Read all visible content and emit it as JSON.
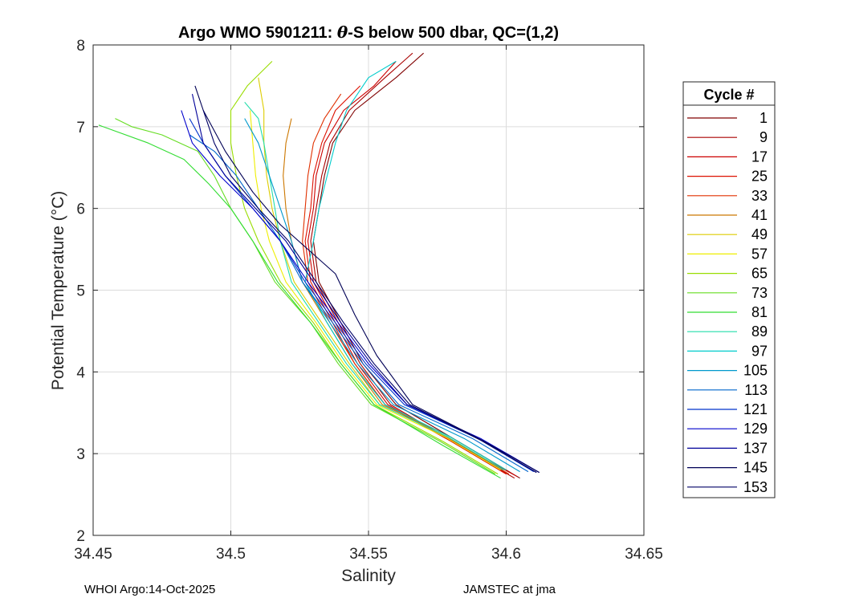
{
  "footer": {
    "left": "WHOI Argo:14-Oct-2025",
    "right": "JAMSTEC at jma"
  },
  "chart_data": {
    "type": "line",
    "title_prefix": "Argo WMO 5901211: ",
    "title_theta": "θ",
    "title_suffix": "-S below 500 dbar,  QC=(1,2)",
    "xlabel": "Salinity",
    "ylabel": "Potential Temperature (°C)",
    "xlim": [
      34.45,
      34.65
    ],
    "ylim": [
      2,
      8
    ],
    "xticks": [
      34.45,
      34.5,
      34.55,
      34.6,
      34.65
    ],
    "xtick_labels": [
      "34.45",
      "34.5",
      "34.55",
      "34.6",
      "34.65"
    ],
    "yticks": [
      2,
      3,
      4,
      5,
      6,
      7,
      8
    ],
    "ytick_labels": [
      "2",
      "3",
      "4",
      "5",
      "6",
      "7",
      "8"
    ],
    "grid": true,
    "legend": {
      "title": "Cycle #",
      "placement": "outside-right"
    },
    "series": [
      {
        "name": "1",
        "color": "#800000",
        "points": [
          [
            34.605,
            2.7
          ],
          [
            34.585,
            3.1
          ],
          [
            34.56,
            3.6
          ],
          [
            34.548,
            4.1
          ],
          [
            34.54,
            4.6
          ],
          [
            34.532,
            5.1
          ],
          [
            34.53,
            5.6
          ],
          [
            34.532,
            6.0
          ],
          [
            34.534,
            6.4
          ],
          [
            34.537,
            6.8
          ],
          [
            34.545,
            7.2
          ],
          [
            34.56,
            7.6
          ],
          [
            34.57,
            7.9
          ]
        ]
      },
      {
        "name": "9",
        "color": "#aa0000",
        "points": [
          [
            34.603,
            2.7
          ],
          [
            34.583,
            3.1
          ],
          [
            34.558,
            3.6
          ],
          [
            34.547,
            4.1
          ],
          [
            34.539,
            4.6
          ],
          [
            34.531,
            5.1
          ],
          [
            34.529,
            5.6
          ],
          [
            34.531,
            6.0
          ],
          [
            34.533,
            6.4
          ],
          [
            34.536,
            6.8
          ],
          [
            34.543,
            7.2
          ],
          [
            34.556,
            7.6
          ],
          [
            34.566,
            7.9
          ]
        ]
      },
      {
        "name": "17",
        "color": "#cc0000",
        "points": [
          [
            34.604,
            2.72
          ],
          [
            34.582,
            3.12
          ],
          [
            34.557,
            3.6
          ],
          [
            34.546,
            4.1
          ],
          [
            34.538,
            4.6
          ],
          [
            34.53,
            5.1
          ],
          [
            34.528,
            5.6
          ],
          [
            34.53,
            6.0
          ],
          [
            34.531,
            6.4
          ],
          [
            34.534,
            6.8
          ],
          [
            34.541,
            7.2
          ],
          [
            34.552,
            7.5
          ],
          [
            34.56,
            7.8
          ]
        ]
      },
      {
        "name": "25",
        "color": "#dd1100",
        "points": [
          [
            34.6,
            2.75
          ],
          [
            34.58,
            3.15
          ],
          [
            34.556,
            3.6
          ],
          [
            34.545,
            4.1
          ],
          [
            34.537,
            4.6
          ],
          [
            34.529,
            5.1
          ],
          [
            34.527,
            5.6
          ],
          [
            34.529,
            6.0
          ],
          [
            34.53,
            6.4
          ],
          [
            34.533,
            6.8
          ],
          [
            34.538,
            7.2
          ],
          [
            34.547,
            7.5
          ]
        ]
      },
      {
        "name": "33",
        "color": "#e03000",
        "points": [
          [
            34.601,
            2.75
          ],
          [
            34.581,
            3.15
          ],
          [
            34.556,
            3.6
          ],
          [
            34.545,
            4.1
          ],
          [
            34.536,
            4.6
          ],
          [
            34.528,
            5.1
          ],
          [
            34.526,
            5.6
          ],
          [
            34.527,
            6.0
          ],
          [
            34.528,
            6.4
          ],
          [
            34.53,
            6.8
          ],
          [
            34.534,
            7.1
          ],
          [
            34.54,
            7.4
          ]
        ]
      },
      {
        "name": "41",
        "color": "#cc7700",
        "points": [
          [
            34.6,
            2.8
          ],
          [
            34.58,
            3.2
          ],
          [
            34.555,
            3.6
          ],
          [
            34.544,
            4.1
          ],
          [
            34.535,
            4.6
          ],
          [
            34.526,
            5.1
          ],
          [
            34.522,
            5.6
          ],
          [
            34.52,
            6.0
          ],
          [
            34.519,
            6.4
          ],
          [
            34.52,
            6.8
          ],
          [
            34.522,
            7.1
          ]
        ]
      },
      {
        "name": "49",
        "color": "#ddcc00",
        "points": [
          [
            34.599,
            2.8
          ],
          [
            34.579,
            3.2
          ],
          [
            34.554,
            3.6
          ],
          [
            34.543,
            4.1
          ],
          [
            34.533,
            4.6
          ],
          [
            34.523,
            5.1
          ],
          [
            34.518,
            5.6
          ],
          [
            34.515,
            6.0
          ],
          [
            34.513,
            6.4
          ],
          [
            34.512,
            6.8
          ],
          [
            34.512,
            7.2
          ],
          [
            34.51,
            7.6
          ]
        ]
      },
      {
        "name": "57",
        "color": "#eeee00",
        "points": [
          [
            34.598,
            2.8
          ],
          [
            34.578,
            3.2
          ],
          [
            34.553,
            3.6
          ],
          [
            34.541,
            4.1
          ],
          [
            34.531,
            4.6
          ],
          [
            34.52,
            5.1
          ],
          [
            34.514,
            5.6
          ],
          [
            34.511,
            6.0
          ],
          [
            34.509,
            6.4
          ],
          [
            34.508,
            6.8
          ],
          [
            34.507,
            7.2
          ]
        ]
      },
      {
        "name": "65",
        "color": "#99dd00",
        "points": [
          [
            34.597,
            2.75
          ],
          [
            34.577,
            3.15
          ],
          [
            34.552,
            3.6
          ],
          [
            34.54,
            4.1
          ],
          [
            34.53,
            4.6
          ],
          [
            34.518,
            5.1
          ],
          [
            34.51,
            5.6
          ],
          [
            34.505,
            6.0
          ],
          [
            34.502,
            6.4
          ],
          [
            34.5,
            6.8
          ],
          [
            34.5,
            7.2
          ],
          [
            34.506,
            7.5
          ],
          [
            34.515,
            7.8
          ]
        ]
      },
      {
        "name": "73",
        "color": "#66dd22",
        "points": [
          [
            34.596,
            2.75
          ],
          [
            34.576,
            3.15
          ],
          [
            34.551,
            3.6
          ],
          [
            34.539,
            4.1
          ],
          [
            34.529,
            4.6
          ],
          [
            34.516,
            5.1
          ],
          [
            34.508,
            5.6
          ],
          [
            34.5,
            6.0
          ],
          [
            34.494,
            6.4
          ],
          [
            34.488,
            6.7
          ],
          [
            34.475,
            6.9
          ],
          [
            34.464,
            7.0
          ],
          [
            34.458,
            7.1
          ]
        ]
      },
      {
        "name": "81",
        "color": "#33dd33",
        "points": [
          [
            34.598,
            2.7
          ],
          [
            34.577,
            3.1
          ],
          [
            34.552,
            3.6
          ],
          [
            34.54,
            4.1
          ],
          [
            34.529,
            4.6
          ],
          [
            34.517,
            5.1
          ],
          [
            34.508,
            5.6
          ],
          [
            34.5,
            6.0
          ],
          [
            34.492,
            6.3
          ],
          [
            34.483,
            6.6
          ],
          [
            34.47,
            6.8
          ],
          [
            34.452,
            7.02
          ]
        ]
      },
      {
        "name": "89",
        "color": "#22ddaa",
        "points": [
          [
            34.599,
            2.8
          ],
          [
            34.579,
            3.2
          ],
          [
            34.554,
            3.6
          ],
          [
            34.542,
            4.1
          ],
          [
            34.532,
            4.6
          ],
          [
            34.522,
            5.1
          ],
          [
            34.518,
            5.6
          ],
          [
            34.516,
            6.0
          ],
          [
            34.514,
            6.4
          ],
          [
            34.512,
            6.8
          ],
          [
            34.51,
            7.1
          ],
          [
            34.505,
            7.3
          ]
        ]
      },
      {
        "name": "97",
        "color": "#00cccc",
        "points": [
          [
            34.6,
            2.8
          ],
          [
            34.58,
            3.2
          ],
          [
            34.556,
            3.6
          ],
          [
            34.544,
            4.1
          ],
          [
            34.535,
            4.6
          ],
          [
            34.527,
            5.1
          ],
          [
            34.53,
            5.6
          ],
          [
            34.532,
            6.0
          ],
          [
            34.535,
            6.4
          ],
          [
            34.538,
            6.8
          ],
          [
            34.542,
            7.2
          ],
          [
            34.55,
            7.6
          ],
          [
            34.56,
            7.8
          ]
        ]
      },
      {
        "name": "105",
        "color": "#0099cc",
        "points": [
          [
            34.605,
            2.78
          ],
          [
            34.585,
            3.18
          ],
          [
            34.559,
            3.6
          ],
          [
            34.546,
            4.1
          ],
          [
            34.536,
            4.6
          ],
          [
            34.526,
            5.1
          ],
          [
            34.522,
            5.6
          ],
          [
            34.518,
            6.0
          ],
          [
            34.514,
            6.4
          ],
          [
            34.51,
            6.8
          ],
          [
            34.505,
            7.1
          ]
        ]
      },
      {
        "name": "113",
        "color": "#0066cc",
        "points": [
          [
            34.608,
            2.78
          ],
          [
            34.588,
            3.18
          ],
          [
            34.561,
            3.6
          ],
          [
            34.548,
            4.1
          ],
          [
            34.537,
            4.6
          ],
          [
            34.526,
            5.1
          ],
          [
            34.518,
            5.6
          ],
          [
            34.51,
            6.0
          ],
          [
            34.502,
            6.4
          ],
          [
            34.494,
            6.7
          ],
          [
            34.485,
            6.9
          ]
        ]
      },
      {
        "name": "121",
        "color": "#0033cc",
        "points": [
          [
            34.61,
            2.78
          ],
          [
            34.59,
            3.18
          ],
          [
            34.563,
            3.6
          ],
          [
            34.549,
            4.1
          ],
          [
            34.538,
            4.6
          ],
          [
            34.527,
            5.1
          ],
          [
            34.518,
            5.6
          ],
          [
            34.508,
            6.0
          ],
          [
            34.498,
            6.4
          ],
          [
            34.49,
            6.8
          ],
          [
            34.485,
            7.1
          ]
        ]
      },
      {
        "name": "129",
        "color": "#0000cc",
        "points": [
          [
            34.612,
            2.77
          ],
          [
            34.591,
            3.18
          ],
          [
            34.564,
            3.6
          ],
          [
            34.55,
            4.1
          ],
          [
            34.539,
            4.6
          ],
          [
            34.528,
            5.1
          ],
          [
            34.518,
            5.6
          ],
          [
            34.508,
            6.0
          ],
          [
            34.496,
            6.4
          ],
          [
            34.486,
            6.8
          ],
          [
            34.482,
            7.2
          ]
        ]
      },
      {
        "name": "137",
        "color": "#000099",
        "points": [
          [
            34.611,
            2.77
          ],
          [
            34.59,
            3.18
          ],
          [
            34.564,
            3.6
          ],
          [
            34.551,
            4.1
          ],
          [
            34.54,
            4.6
          ],
          [
            34.53,
            5.1
          ],
          [
            34.52,
            5.6
          ],
          [
            34.509,
            6.0
          ],
          [
            34.498,
            6.4
          ],
          [
            34.49,
            6.8
          ],
          [
            34.486,
            7.4
          ]
        ]
      },
      {
        "name": "145",
        "color": "#000055",
        "points": [
          [
            34.612,
            2.77
          ],
          [
            34.592,
            3.15
          ],
          [
            34.566,
            3.6
          ],
          [
            34.553,
            4.2
          ],
          [
            34.545,
            4.7
          ],
          [
            34.538,
            5.2
          ],
          [
            34.528,
            5.5
          ],
          [
            34.518,
            5.8
          ],
          [
            34.508,
            6.2
          ],
          [
            34.498,
            6.7
          ],
          [
            34.49,
            7.2
          ],
          [
            34.487,
            7.5
          ]
        ]
      },
      {
        "name": "153",
        "color": "#000066",
        "points": [
          [
            34.611,
            2.77
          ],
          [
            34.591,
            3.16
          ],
          [
            34.565,
            3.6
          ],
          [
            34.552,
            4.1
          ],
          [
            34.541,
            4.6
          ],
          [
            34.531,
            5.1
          ],
          [
            34.521,
            5.6
          ],
          [
            34.51,
            6.0
          ],
          [
            34.5,
            6.4
          ],
          [
            34.494,
            6.8
          ],
          [
            34.49,
            7.2
          ]
        ]
      }
    ]
  }
}
